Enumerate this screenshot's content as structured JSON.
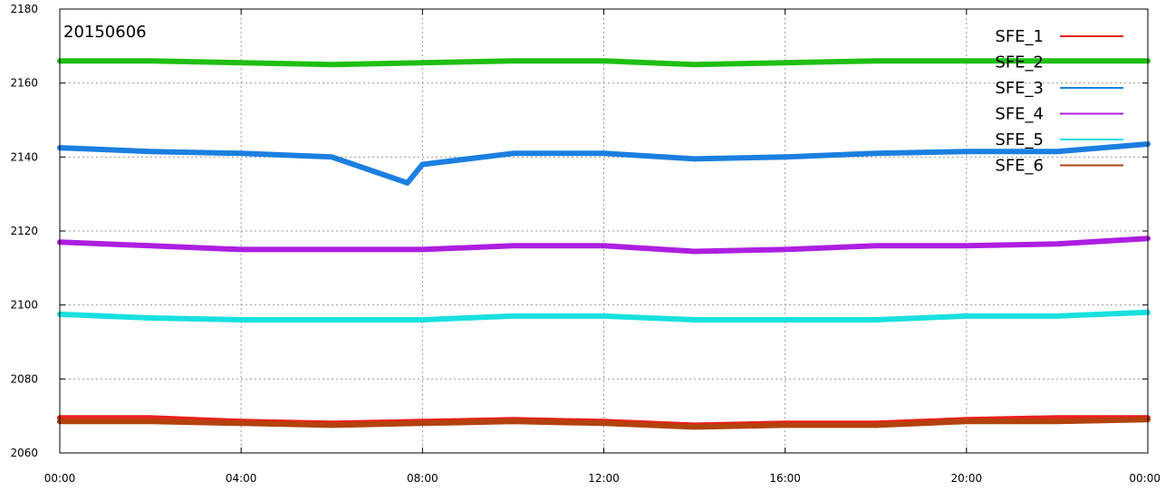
{
  "chart_data": {
    "type": "line",
    "annotation": "20150606",
    "xlabel": "",
    "ylabel": "",
    "xlim": [
      "00:00",
      "24:00"
    ],
    "ylim": [
      2060,
      2180
    ],
    "x_ticks": [
      "00:00",
      "04:00",
      "08:00",
      "12:00",
      "16:00",
      "20:00",
      "00:00"
    ],
    "y_ticks": [
      "2060",
      "2080",
      "2100",
      "2120",
      "2140",
      "2160",
      "2180"
    ],
    "grid": true,
    "legend_position": "top-right",
    "series": [
      {
        "name": "SFE_1",
        "color": "#e8211a",
        "x": [
          "00:00",
          "02:00",
          "04:00",
          "06:00",
          "08:00",
          "10:00",
          "12:00",
          "14:00",
          "16:00",
          "18:00",
          "20:00",
          "22:00",
          "24:00"
        ],
        "values": [
          2069.5,
          2069.5,
          2068.5,
          2068,
          2068.5,
          2069,
          2068.5,
          2067.5,
          2068,
          2068,
          2069,
          2069.5,
          2069.5
        ]
      },
      {
        "name": "SFE_2",
        "color": "#1fbf12",
        "x": [
          "00:00",
          "02:00",
          "04:00",
          "06:00",
          "08:00",
          "10:00",
          "12:00",
          "14:00",
          "16:00",
          "18:00",
          "20:00",
          "22:00",
          "24:00"
        ],
        "values": [
          2166,
          2166,
          2165.5,
          2165,
          2165.5,
          2166,
          2166,
          2165,
          2165.5,
          2166,
          2166,
          2166,
          2166
        ]
      },
      {
        "name": "SFE_3",
        "color": "#1b7fe0",
        "x": [
          "00:00",
          "02:00",
          "04:00",
          "06:00",
          "07:40",
          "08:00",
          "10:00",
          "12:00",
          "14:00",
          "16:00",
          "18:00",
          "20:00",
          "22:00",
          "24:00"
        ],
        "values": [
          2142.5,
          2141.5,
          2141,
          2140,
          2133,
          2138,
          2141,
          2141,
          2139.5,
          2140,
          2141,
          2141.5,
          2141.5,
          2143.5
        ]
      },
      {
        "name": "SFE_4",
        "color": "#ad1ee0",
        "x": [
          "00:00",
          "02:00",
          "04:00",
          "06:00",
          "08:00",
          "10:00",
          "12:00",
          "14:00",
          "16:00",
          "18:00",
          "20:00",
          "22:00",
          "24:00"
        ],
        "values": [
          2117,
          2116,
          2115,
          2115,
          2115,
          2116,
          2116,
          2114.5,
          2115,
          2116,
          2116,
          2116.5,
          2118
        ]
      },
      {
        "name": "SFE_5",
        "color": "#19e0e0",
        "x": [
          "00:00",
          "02:00",
          "04:00",
          "06:00",
          "08:00",
          "10:00",
          "12:00",
          "14:00",
          "16:00",
          "18:00",
          "20:00",
          "22:00",
          "24:00"
        ],
        "values": [
          2097.5,
          2096.5,
          2096,
          2096,
          2096,
          2097,
          2097,
          2096,
          2096,
          2096,
          2097,
          2097,
          2098
        ]
      },
      {
        "name": "SFE_6",
        "color": "#b3420e",
        "x": [
          "00:00",
          "02:00",
          "04:00",
          "06:00",
          "08:00",
          "10:00",
          "12:00",
          "14:00",
          "16:00",
          "18:00",
          "20:00",
          "22:00",
          "24:00"
        ],
        "values": [
          2068.5,
          2068.5,
          2068,
          2067.5,
          2068,
          2068.5,
          2068,
          2067,
          2067.5,
          2067.5,
          2068.5,
          2068.5,
          2069
        ]
      }
    ]
  }
}
